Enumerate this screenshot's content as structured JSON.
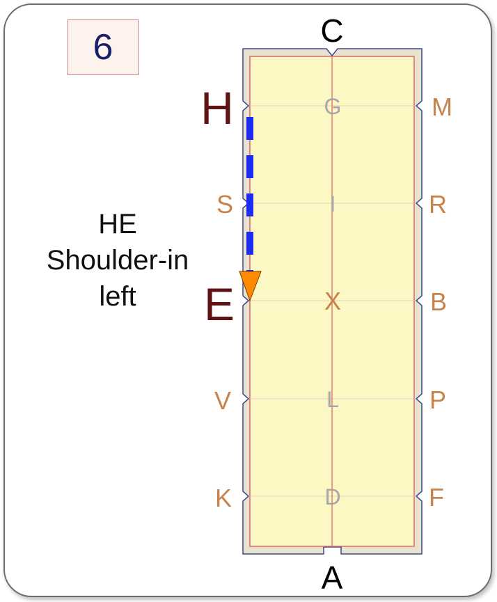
{
  "test_number": "6",
  "movement": {
    "line1": "HE",
    "line2": "Shoulder-in",
    "line3": "left"
  },
  "arena": {
    "top_letter": "C",
    "bottom_letter": "A",
    "left_letters": [
      "H",
      "S",
      "E",
      "V",
      "K"
    ],
    "right_letters": [
      "M",
      "R",
      "B",
      "P",
      "F"
    ],
    "center_letters": [
      "G",
      "I",
      "X",
      "L",
      "D"
    ],
    "highlighted_letters": [
      "H",
      "E"
    ]
  },
  "colors": {
    "arena_fill": "#fbf8c4",
    "arena_border": "#e8e2cf",
    "letter_orange": "#c8834a",
    "letter_gray": "#a7a7a7",
    "highlight_letter": "#5e1414",
    "path_blue": "#1c2cf0",
    "arrow_orange": "#ff8a00",
    "number_color": "#1a1f6b"
  }
}
